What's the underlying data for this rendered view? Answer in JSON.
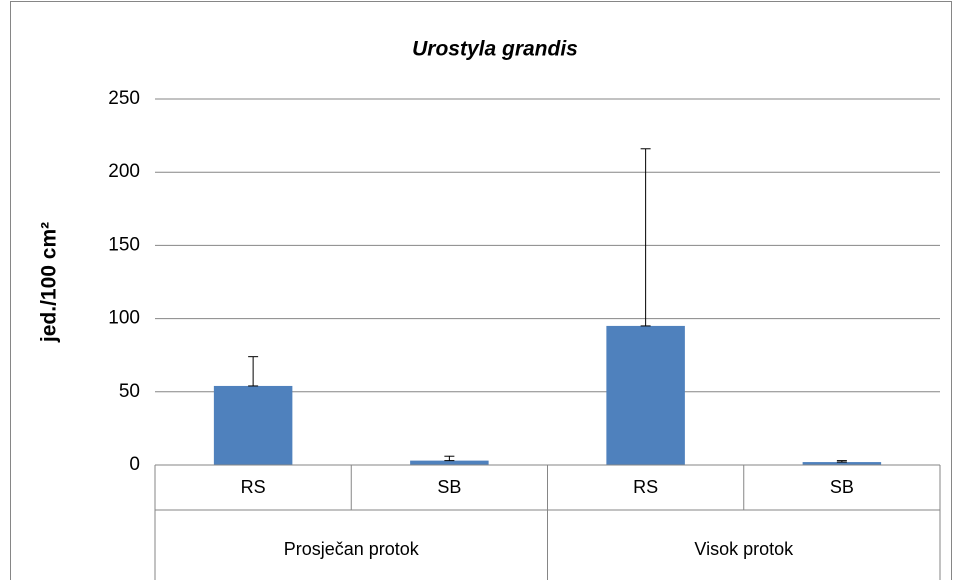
{
  "chart_data": {
    "type": "bar",
    "title": "Urostyla grandis",
    "ylabel": "jed./100 cm²",
    "groups": [
      {
        "label": "Prosječan protok",
        "categories": [
          "RS",
          "SB"
        ],
        "values": [
          54,
          3
        ],
        "errors": [
          20,
          3
        ]
      },
      {
        "label": "Visok protok",
        "categories": [
          "RS",
          "SB"
        ],
        "values": [
          95,
          2
        ],
        "errors": [
          121,
          1
        ]
      }
    ],
    "color": "#4f81bd",
    "ylim": [
      0,
      250
    ],
    "yticks": [
      0,
      50,
      100,
      150,
      200,
      250
    ],
    "grid": true
  }
}
